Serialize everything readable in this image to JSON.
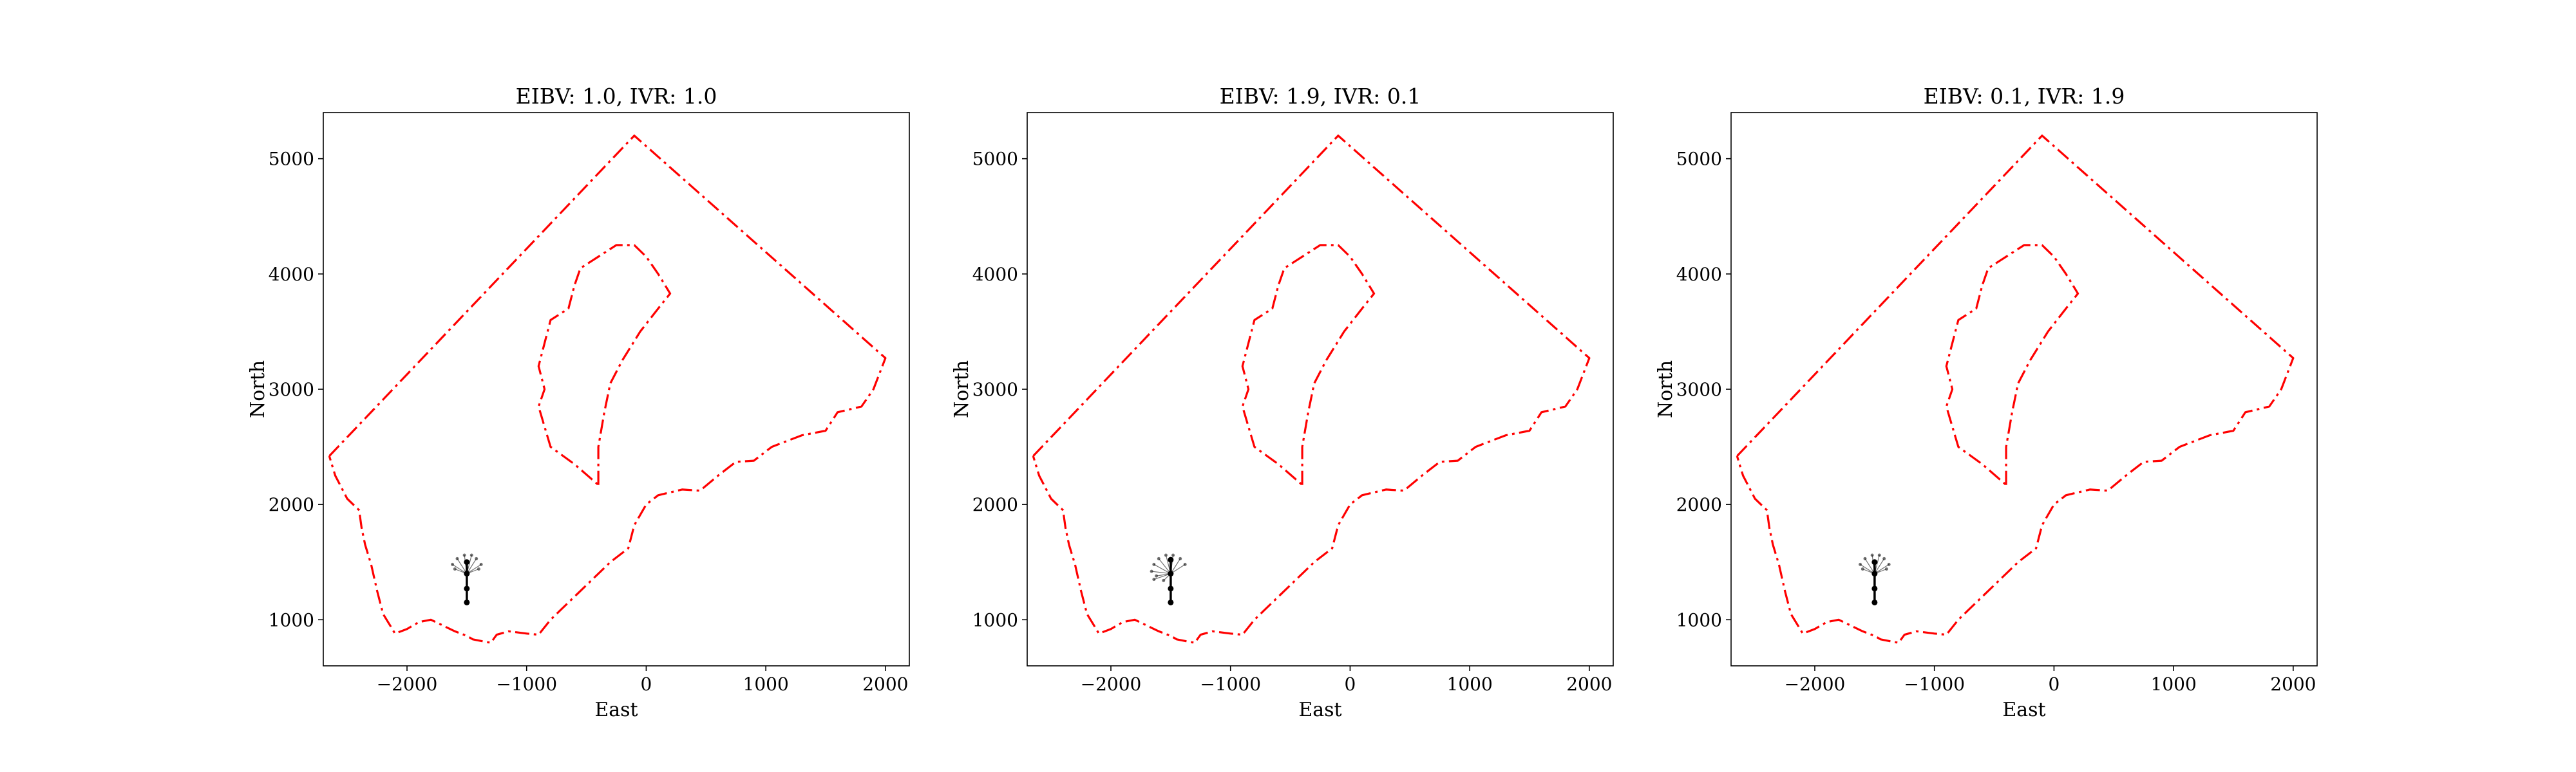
{
  "figure": {
    "layout": "1x3 subplots"
  },
  "chart_data": [
    {
      "type": "line",
      "title": "EIBV: 1.0, IVR: 1.0",
      "xlabel": "East",
      "ylabel": "North",
      "xlim": [
        -2700,
        2200
      ],
      "ylim": [
        600,
        5400
      ],
      "xticks": [
        -2000,
        -1000,
        0,
        1000,
        2000
      ],
      "xtick_labels": [
        "−2000",
        "−1000",
        "0",
        "1000",
        "2000"
      ],
      "yticks": [
        1000,
        2000,
        3000,
        4000,
        5000
      ],
      "ytick_labels": [
        "1000",
        "2000",
        "3000",
        "4000",
        "5000"
      ],
      "grid": false,
      "boundary_color": "#ff0000",
      "path_color": "#000000",
      "outer_boundary": [
        [
          -2650,
          2420
        ],
        [
          -100,
          5200
        ],
        [
          2000,
          3270
        ],
        [
          1900,
          3000
        ],
        [
          1800,
          2850
        ],
        [
          1600,
          2800
        ],
        [
          1500,
          2640
        ],
        [
          1300,
          2600
        ],
        [
          1050,
          2500
        ],
        [
          900,
          2380
        ],
        [
          750,
          2370
        ],
        [
          600,
          2250
        ],
        [
          450,
          2120
        ],
        [
          300,
          2130
        ],
        [
          100,
          2080
        ],
        [
          0,
          2000
        ],
        [
          -100,
          1820
        ],
        [
          -150,
          1620
        ],
        [
          -300,
          1500
        ],
        [
          -500,
          1300
        ],
        [
          -700,
          1100
        ],
        [
          -800,
          1000
        ],
        [
          -900,
          870
        ],
        [
          -1000,
          880
        ],
        [
          -1150,
          900
        ],
        [
          -1250,
          870
        ],
        [
          -1300,
          800
        ],
        [
          -1450,
          830
        ],
        [
          -1500,
          860
        ],
        [
          -1600,
          900
        ],
        [
          -1700,
          950
        ],
        [
          -1800,
          1000
        ],
        [
          -1900,
          980
        ],
        [
          -2000,
          920
        ],
        [
          -2100,
          880
        ],
        [
          -2200,
          1050
        ],
        [
          -2250,
          1250
        ],
        [
          -2300,
          1480
        ],
        [
          -2350,
          1650
        ],
        [
          -2380,
          1800
        ],
        [
          -2400,
          1950
        ],
        [
          -2500,
          2050
        ],
        [
          -2550,
          2150
        ],
        [
          -2600,
          2250
        ],
        [
          -2650,
          2420
        ]
      ],
      "inner_boundary": [
        [
          -400,
          2170
        ],
        [
          -400,
          2500
        ],
        [
          -350,
          2800
        ],
        [
          -300,
          3050
        ],
        [
          -200,
          3250
        ],
        [
          -50,
          3500
        ],
        [
          100,
          3700
        ],
        [
          200,
          3830
        ],
        [
          100,
          4000
        ],
        [
          0,
          4150
        ],
        [
          -100,
          4250
        ],
        [
          -250,
          4250
        ],
        [
          -400,
          4150
        ],
        [
          -550,
          4050
        ],
        [
          -600,
          3900
        ],
        [
          -650,
          3700
        ],
        [
          -800,
          3600
        ],
        [
          -850,
          3400
        ],
        [
          -900,
          3200
        ],
        [
          -850,
          3000
        ],
        [
          -900,
          2850
        ],
        [
          -800,
          2500
        ],
        [
          -600,
          2350
        ],
        [
          -400,
          2170
        ]
      ],
      "fan_origin": [
        -1500,
        1400
      ],
      "fan_endpoints": [
        [
          -1620,
          1480
        ],
        [
          -1580,
          1530
        ],
        [
          -1520,
          1560
        ],
        [
          -1460,
          1560
        ],
        [
          -1420,
          1530
        ],
        [
          -1380,
          1480
        ],
        [
          -1600,
          1440
        ],
        [
          -1400,
          1440
        ]
      ],
      "path": [
        [
          -1500,
          1150
        ],
        [
          -1500,
          1270
        ],
        [
          -1500,
          1400
        ],
        [
          -1500,
          1500
        ]
      ]
    },
    {
      "type": "line",
      "title": "EIBV: 1.9, IVR: 0.1",
      "xlabel": "East",
      "ylabel": "North",
      "xlim": [
        -2700,
        2200
      ],
      "ylim": [
        600,
        5400
      ],
      "xticks": [
        -2000,
        -1000,
        0,
        1000,
        2000
      ],
      "xtick_labels": [
        "−2000",
        "−1000",
        "0",
        "1000",
        "2000"
      ],
      "yticks": [
        1000,
        2000,
        3000,
        4000,
        5000
      ],
      "ytick_labels": [
        "1000",
        "2000",
        "3000",
        "4000",
        "5000"
      ],
      "grid": false,
      "boundary_color": "#ff0000",
      "path_color": "#000000",
      "outer_boundary": [
        [
          -2650,
          2420
        ],
        [
          -100,
          5200
        ],
        [
          2000,
          3270
        ],
        [
          1900,
          3000
        ],
        [
          1800,
          2850
        ],
        [
          1600,
          2800
        ],
        [
          1500,
          2640
        ],
        [
          1300,
          2600
        ],
        [
          1050,
          2500
        ],
        [
          900,
          2380
        ],
        [
          750,
          2370
        ],
        [
          600,
          2250
        ],
        [
          450,
          2120
        ],
        [
          300,
          2130
        ],
        [
          100,
          2080
        ],
        [
          0,
          2000
        ],
        [
          -100,
          1820
        ],
        [
          -150,
          1620
        ],
        [
          -300,
          1500
        ],
        [
          -500,
          1300
        ],
        [
          -700,
          1100
        ],
        [
          -800,
          1000
        ],
        [
          -900,
          870
        ],
        [
          -1000,
          880
        ],
        [
          -1150,
          900
        ],
        [
          -1250,
          870
        ],
        [
          -1300,
          800
        ],
        [
          -1450,
          830
        ],
        [
          -1500,
          860
        ],
        [
          -1600,
          900
        ],
        [
          -1700,
          950
        ],
        [
          -1800,
          1000
        ],
        [
          -1900,
          980
        ],
        [
          -2000,
          920
        ],
        [
          -2100,
          880
        ],
        [
          -2200,
          1050
        ],
        [
          -2250,
          1250
        ],
        [
          -2300,
          1480
        ],
        [
          -2350,
          1650
        ],
        [
          -2380,
          1800
        ],
        [
          -2400,
          1950
        ],
        [
          -2500,
          2050
        ],
        [
          -2550,
          2150
        ],
        [
          -2600,
          2250
        ],
        [
          -2650,
          2420
        ]
      ],
      "inner_boundary": [
        [
          -400,
          2170
        ],
        [
          -400,
          2500
        ],
        [
          -350,
          2800
        ],
        [
          -300,
          3050
        ],
        [
          -200,
          3250
        ],
        [
          -50,
          3500
        ],
        [
          100,
          3700
        ],
        [
          200,
          3830
        ],
        [
          100,
          4000
        ],
        [
          0,
          4150
        ],
        [
          -100,
          4250
        ],
        [
          -250,
          4250
        ],
        [
          -400,
          4150
        ],
        [
          -550,
          4050
        ],
        [
          -600,
          3900
        ],
        [
          -650,
          3700
        ],
        [
          -800,
          3600
        ],
        [
          -850,
          3400
        ],
        [
          -900,
          3200
        ],
        [
          -850,
          3000
        ],
        [
          -900,
          2850
        ],
        [
          -800,
          2500
        ],
        [
          -600,
          2350
        ],
        [
          -400,
          2170
        ]
      ],
      "fan_origin": [
        -1500,
        1400
      ],
      "fan_endpoints": [
        [
          -1660,
          1420
        ],
        [
          -1640,
          1480
        ],
        [
          -1600,
          1530
        ],
        [
          -1540,
          1560
        ],
        [
          -1480,
          1560
        ],
        [
          -1420,
          1530
        ],
        [
          -1380,
          1480
        ],
        [
          -1620,
          1380
        ],
        [
          -1560,
          1340
        ],
        [
          -1640,
          1350
        ]
      ],
      "path": [
        [
          -1500,
          1150
        ],
        [
          -1500,
          1270
        ],
        [
          -1500,
          1400
        ],
        [
          -1500,
          1520
        ]
      ]
    },
    {
      "type": "line",
      "title": "EIBV: 0.1, IVR: 1.9",
      "xlabel": "East",
      "ylabel": "North",
      "xlim": [
        -2700,
        2200
      ],
      "ylim": [
        600,
        5400
      ],
      "xticks": [
        -2000,
        -1000,
        0,
        1000,
        2000
      ],
      "xtick_labels": [
        "−2000",
        "−1000",
        "0",
        "1000",
        "2000"
      ],
      "yticks": [
        1000,
        2000,
        3000,
        4000,
        5000
      ],
      "ytick_labels": [
        "1000",
        "2000",
        "3000",
        "4000",
        "5000"
      ],
      "grid": false,
      "boundary_color": "#ff0000",
      "path_color": "#000000",
      "outer_boundary": [
        [
          -2650,
          2420
        ],
        [
          -100,
          5200
        ],
        [
          2000,
          3270
        ],
        [
          1900,
          3000
        ],
        [
          1800,
          2850
        ],
        [
          1600,
          2800
        ],
        [
          1500,
          2640
        ],
        [
          1300,
          2600
        ],
        [
          1050,
          2500
        ],
        [
          900,
          2380
        ],
        [
          750,
          2370
        ],
        [
          600,
          2250
        ],
        [
          450,
          2120
        ],
        [
          300,
          2130
        ],
        [
          100,
          2080
        ],
        [
          0,
          2000
        ],
        [
          -100,
          1820
        ],
        [
          -150,
          1620
        ],
        [
          -300,
          1500
        ],
        [
          -500,
          1300
        ],
        [
          -700,
          1100
        ],
        [
          -800,
          1000
        ],
        [
          -900,
          870
        ],
        [
          -1000,
          880
        ],
        [
          -1150,
          900
        ],
        [
          -1250,
          870
        ],
        [
          -1300,
          800
        ],
        [
          -1450,
          830
        ],
        [
          -1500,
          860
        ],
        [
          -1600,
          900
        ],
        [
          -1700,
          950
        ],
        [
          -1800,
          1000
        ],
        [
          -1900,
          980
        ],
        [
          -2000,
          920
        ],
        [
          -2100,
          880
        ],
        [
          -2200,
          1050
        ],
        [
          -2250,
          1250
        ],
        [
          -2300,
          1480
        ],
        [
          -2350,
          1650
        ],
        [
          -2380,
          1800
        ],
        [
          -2400,
          1950
        ],
        [
          -2500,
          2050
        ],
        [
          -2550,
          2150
        ],
        [
          -2600,
          2250
        ],
        [
          -2650,
          2420
        ]
      ],
      "inner_boundary": [
        [
          -400,
          2170
        ],
        [
          -400,
          2500
        ],
        [
          -350,
          2800
        ],
        [
          -300,
          3050
        ],
        [
          -200,
          3250
        ],
        [
          -50,
          3500
        ],
        [
          100,
          3700
        ],
        [
          200,
          3830
        ],
        [
          100,
          4000
        ],
        [
          0,
          4150
        ],
        [
          -100,
          4250
        ],
        [
          -250,
          4250
        ],
        [
          -400,
          4150
        ],
        [
          -550,
          4050
        ],
        [
          -600,
          3900
        ],
        [
          -650,
          3700
        ],
        [
          -800,
          3600
        ],
        [
          -850,
          3400
        ],
        [
          -900,
          3200
        ],
        [
          -850,
          3000
        ],
        [
          -900,
          2850
        ],
        [
          -800,
          2500
        ],
        [
          -600,
          2350
        ],
        [
          -400,
          2170
        ]
      ],
      "fan_origin": [
        -1500,
        1400
      ],
      "fan_endpoints": [
        [
          -1620,
          1480
        ],
        [
          -1580,
          1530
        ],
        [
          -1520,
          1560
        ],
        [
          -1460,
          1560
        ],
        [
          -1420,
          1530
        ],
        [
          -1380,
          1480
        ],
        [
          -1600,
          1440
        ],
        [
          -1400,
          1440
        ]
      ],
      "path": [
        [
          -1500,
          1150
        ],
        [
          -1500,
          1270
        ],
        [
          -1500,
          1400
        ],
        [
          -1500,
          1500
        ]
      ]
    }
  ]
}
